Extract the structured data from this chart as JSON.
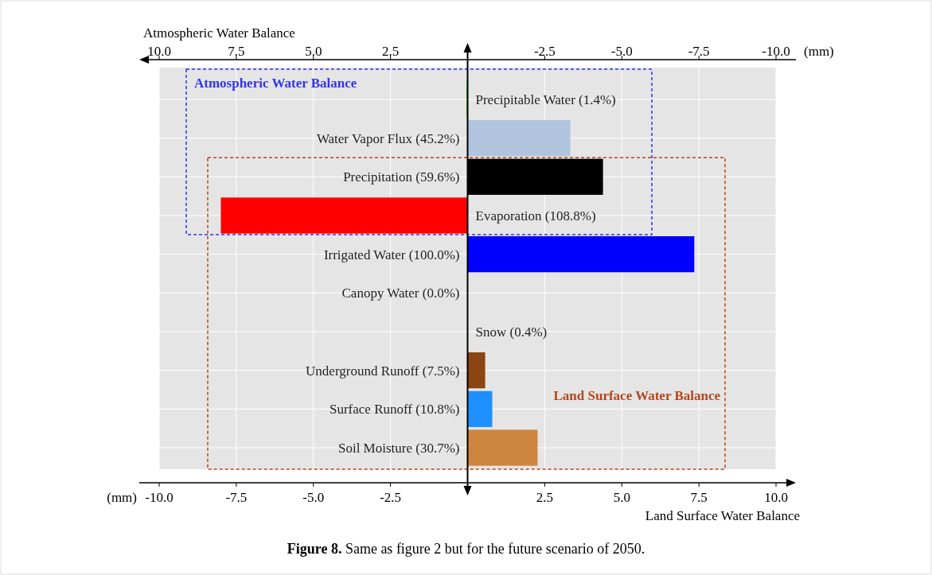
{
  "chart_data": {
    "type": "bar",
    "orientation": "horizontal",
    "categories": [
      "Precipitable Water (1.4%)",
      "Water Vapor Flux (45.2%)",
      "Precipitation (59.6%)",
      "Evaporation (108.8%)",
      "Irrigated Water (100.0%)",
      "Canopy Water (0.0%)",
      "Snow (0.4%)",
      "Underground Runoff (7.5%)",
      "Surface Runoff (10.8%)",
      "Soil Moisture (30.7%)"
    ],
    "series": [
      {
        "axis": "x2",
        "values": [
          0.03,
          -3.33,
          -4.39,
          8.0,
          null,
          null,
          null,
          null,
          null,
          null
        ],
        "colors": [
          "#00e000",
          "#b0c4de",
          "#000000",
          "#ff0000",
          null,
          null,
          null,
          null,
          null,
          null
        ]
      },
      {
        "values": [
          null,
          null,
          null,
          null,
          7.35,
          0,
          -0.01,
          0.57,
          0.8,
          2.27
        ],
        "colors": [
          null,
          null,
          null,
          null,
          "#0000ff",
          "#228b22",
          "#ffffff",
          "#8b4513",
          "#1e90ff",
          "#cd853f"
        ]
      }
    ],
    "xlim": [
      -10,
      10
    ],
    "xticks": [
      {
        "value": -10,
        "label": "-10.0"
      },
      {
        "value": -7.5,
        "label": "-7.5"
      },
      {
        "value": -5,
        "label": "-5.0"
      },
      {
        "value": -2.5,
        "label": "-2.5"
      },
      {
        "value": 2.5,
        "label": "2.5"
      },
      {
        "value": 5,
        "label": "5.0"
      },
      {
        "value": 7.5,
        "label": "7.5"
      },
      {
        "value": 10,
        "label": "10.0"
      }
    ],
    "x2lim": [
      10,
      -10
    ],
    "x2ticks": [
      {
        "value": 10,
        "label": "10.0"
      },
      {
        "value": 7.5,
        "label": "7.5"
      },
      {
        "value": 5,
        "label": "5.0"
      },
      {
        "value": 2.5,
        "label": "2.5"
      },
      {
        "value": -2.5,
        "label": "-2.5"
      },
      {
        "value": -5,
        "label": "-5.0"
      },
      {
        "value": -7.5,
        "label": "-7.5"
      },
      {
        "value": -10,
        "label": "-10.0"
      }
    ],
    "xlabel": "Land Surface Water Balance",
    "x2label": "Atmospheric Water Balance",
    "grid": true,
    "annotations": [
      "Atmospheric Water Balance",
      "Land Surface Water Balance",
      "(mm)",
      "(mm)",
      "Figure 8. Same as figure 2 but for the future scenario of 2050."
    ]
  }
}
